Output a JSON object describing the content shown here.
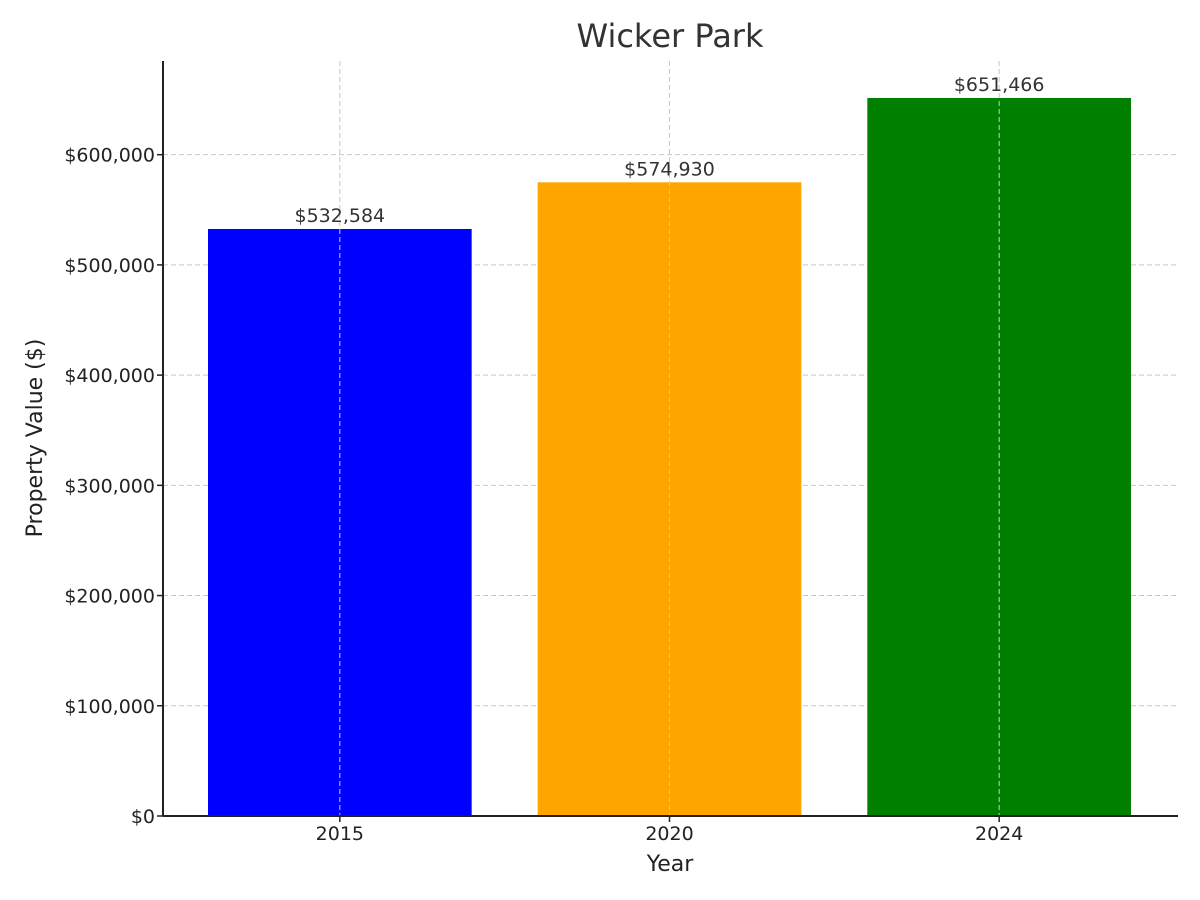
{
  "chart_data": {
    "type": "bar",
    "title": "Wicker Park",
    "xlabel": "Year",
    "ylabel": "Property Value ($)",
    "categories": [
      "2015",
      "2020",
      "2024"
    ],
    "values": [
      532584,
      574930,
      651466
    ],
    "value_labels": [
      "$532,584",
      "$574,930",
      "$651,466"
    ],
    "colors": [
      "#0000ff",
      "#ffa500",
      "#008000"
    ],
    "ylim": [
      0,
      685000
    ],
    "yticks": [
      0,
      100000,
      200000,
      300000,
      400000,
      500000,
      600000
    ],
    "ytick_labels": [
      "$0",
      "$100,000",
      "$200,000",
      "$300,000",
      "$400,000",
      "$500,000",
      "$600,000"
    ],
    "grid": true
  }
}
